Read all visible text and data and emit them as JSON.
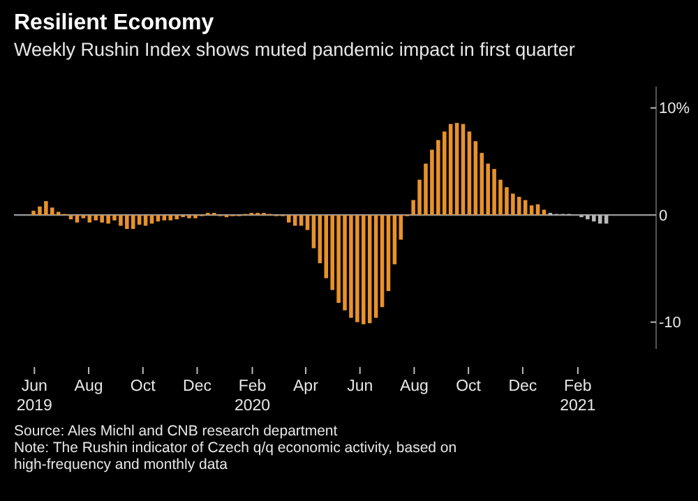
{
  "chart_data": {
    "type": "bar",
    "title": "Resilient Economy",
    "subtitle": "Weekly Rushin Index shows muted pandemic impact in first quarter",
    "annotations": [
      "Source: Ales Michl and CNB research department",
      "Note: The Rushin indicator of Czech q/q economic activity, based on high-frequency and monthly data"
    ],
    "x": [
      "2019-05-31",
      "2019-06-07",
      "2019-06-14",
      "2019-06-21",
      "2019-06-28",
      "2019-07-05",
      "2019-07-12",
      "2019-07-19",
      "2019-07-26",
      "2019-08-02",
      "2019-08-09",
      "2019-08-16",
      "2019-08-23",
      "2019-08-30",
      "2019-09-06",
      "2019-09-13",
      "2019-09-20",
      "2019-09-27",
      "2019-10-04",
      "2019-10-11",
      "2019-10-18",
      "2019-10-25",
      "2019-11-01",
      "2019-11-08",
      "2019-11-15",
      "2019-11-22",
      "2019-11-29",
      "2019-12-06",
      "2019-12-13",
      "2019-12-20",
      "2019-12-27",
      "2020-01-03",
      "2020-01-10",
      "2020-01-17",
      "2020-01-24",
      "2020-01-31",
      "2020-02-07",
      "2020-02-14",
      "2020-02-21",
      "2020-02-28",
      "2020-03-06",
      "2020-03-13",
      "2020-03-20",
      "2020-03-27",
      "2020-04-03",
      "2020-04-10",
      "2020-04-17",
      "2020-04-24",
      "2020-05-01",
      "2020-05-08",
      "2020-05-15",
      "2020-05-22",
      "2020-05-29",
      "2020-06-05",
      "2020-06-12",
      "2020-06-19",
      "2020-06-26",
      "2020-07-03",
      "2020-07-10",
      "2020-07-17",
      "2020-07-24",
      "2020-07-31",
      "2020-08-07",
      "2020-08-14",
      "2020-08-21",
      "2020-08-28",
      "2020-09-04",
      "2020-09-11",
      "2020-09-18",
      "2020-09-25",
      "2020-10-02",
      "2020-10-09",
      "2020-10-16",
      "2020-10-23",
      "2020-10-30",
      "2020-11-06",
      "2020-11-13",
      "2020-11-20",
      "2020-11-27",
      "2020-12-04",
      "2020-12-11",
      "2020-12-18",
      "2020-12-25",
      "2021-01-01",
      "2021-01-08",
      "2021-01-15",
      "2021-01-22",
      "2021-01-29",
      "2021-02-05",
      "2021-02-12",
      "2021-02-19",
      "2021-02-26",
      "2021-03-05"
    ],
    "values": [
      0.4,
      0.8,
      1.3,
      0.7,
      0.3,
      0.1,
      -0.4,
      -0.7,
      -0.3,
      -0.7,
      -0.5,
      -0.7,
      -0.8,
      -0.5,
      -1.0,
      -1.3,
      -1.3,
      -0.9,
      -1.0,
      -0.8,
      -0.6,
      -0.5,
      -0.5,
      -0.4,
      -0.2,
      -0.3,
      -0.3,
      -0.1,
      0.2,
      0.2,
      -0.1,
      -0.2,
      -0.1,
      -0.1,
      0.1,
      0.2,
      0.2,
      0.2,
      0.1,
      -0.1,
      -0.1,
      -0.7,
      -1.0,
      -1.0,
      -1.4,
      -3.1,
      -4.5,
      -5.9,
      -7.0,
      -8.2,
      -8.9,
      -9.6,
      -10.0,
      -10.2,
      -10.1,
      -9.6,
      -8.6,
      -7.1,
      -4.6,
      -2.3,
      -0.1,
      1.4,
      3.3,
      4.8,
      6.1,
      7.0,
      7.8,
      8.5,
      8.6,
      8.5,
      7.8,
      6.9,
      5.8,
      4.8,
      4.3,
      3.3,
      2.6,
      2.0,
      1.7,
      1.4,
      0.9,
      1.0,
      0.5,
      0.2,
      0.1,
      0.1,
      0.1,
      0,
      -0.2,
      -0.4,
      -0.6,
      -0.8,
      -0.8
    ],
    "colors": [
      "#e8922c",
      "#e8922c",
      "#e8922c",
      "#e8922c",
      "#e8922c",
      "#e8922c",
      "#e8922c",
      "#e8922c",
      "#e8922c",
      "#e8922c",
      "#e8922c",
      "#e8922c",
      "#e8922c",
      "#e8922c",
      "#e8922c",
      "#e8922c",
      "#e8922c",
      "#e8922c",
      "#e8922c",
      "#e8922c",
      "#e8922c",
      "#e8922c",
      "#e8922c",
      "#e8922c",
      "#e8922c",
      "#e8922c",
      "#e8922c",
      "#e8922c",
      "#e8922c",
      "#e8922c",
      "#e8922c",
      "#e8922c",
      "#e8922c",
      "#e8922c",
      "#e8922c",
      "#e8922c",
      "#e8922c",
      "#e8922c",
      "#e8922c",
      "#e8922c",
      "#e8922c",
      "#e8922c",
      "#e8922c",
      "#e8922c",
      "#e8922c",
      "#e8922c",
      "#e8922c",
      "#e8922c",
      "#e8922c",
      "#e8922c",
      "#e8922c",
      "#e8922c",
      "#e8922c",
      "#e8922c",
      "#e8922c",
      "#e8922c",
      "#e8922c",
      "#e8922c",
      "#e8922c",
      "#e8922c",
      "#e8922c",
      "#e8922c",
      "#e8922c",
      "#e8922c",
      "#e8922c",
      "#e8922c",
      "#e8922c",
      "#e8922c",
      "#e8922c",
      "#e8922c",
      "#e8922c",
      "#e8922c",
      "#e8922c",
      "#e8922c",
      "#e8922c",
      "#e8922c",
      "#e8922c",
      "#e8922c",
      "#e8922c",
      "#e8922c",
      "#e8922c",
      "#e8922c",
      "#e8922c",
      "#b8b8b8",
      "#b8b8b8",
      "#b8b8b8",
      "#b8b8b8",
      "#b8b8b8",
      "#b8b8b8",
      "#b8b8b8",
      "#b8b8b8",
      "#b8b8b8",
      "#b8b8b8"
    ],
    "xlim": [
      "2019-05-09",
      "2021-04-30"
    ],
    "xticks": [
      {
        "value": "2019-06-01",
        "label": "Jun 2019"
      },
      {
        "value": "2019-08-01",
        "label": "Aug"
      },
      {
        "value": "2019-10-01",
        "label": "Oct"
      },
      {
        "value": "2019-12-01",
        "label": "Dec"
      },
      {
        "value": "2020-02-01",
        "label": "Feb 2020"
      },
      {
        "value": "2020-04-01",
        "label": "Apr"
      },
      {
        "value": "2020-06-01",
        "label": "Jun"
      },
      {
        "value": "2020-08-01",
        "label": "Aug"
      },
      {
        "value": "2020-10-01",
        "label": "Oct"
      },
      {
        "value": "2020-12-01",
        "label": "Dec"
      },
      {
        "value": "2021-02-01",
        "label": "Feb 2021"
      }
    ],
    "ylim": [
      -12.5,
      12
    ],
    "yticks": [
      {
        "value": 10,
        "label": "10%"
      },
      0,
      -10
    ]
  }
}
